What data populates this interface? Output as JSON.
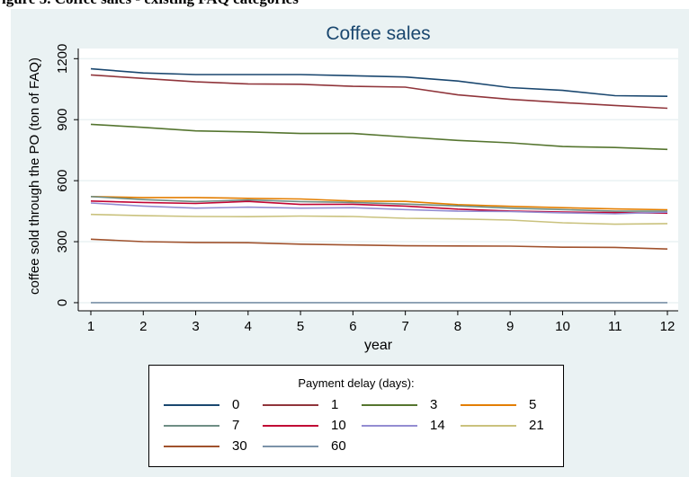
{
  "figure_caption": "igure 5. Coffee sales - existing FAQ categories",
  "chart_data": {
    "type": "line",
    "title": "Coffee sales",
    "xlabel": "year",
    "ylabel": "coffee sold through the PO (ton of FAQ)",
    "x": [
      1,
      2,
      3,
      4,
      5,
      6,
      7,
      8,
      9,
      10,
      11,
      12
    ],
    "xlim": [
      1,
      12
    ],
    "ylim": [
      -40,
      1250
    ],
    "yticks": [
      0,
      300,
      600,
      900,
      1200
    ],
    "grid": "horizontal",
    "legend": {
      "title": "Payment delay (days):",
      "placement": "bottom"
    },
    "series": [
      {
        "name": "0",
        "color": "#1a476f",
        "values": [
          1150,
          1130,
          1122,
          1122,
          1122,
          1116,
          1110,
          1090,
          1058,
          1044,
          1018,
          1015
        ]
      },
      {
        "name": "1",
        "color": "#90353b",
        "values": [
          1120,
          1103,
          1086,
          1076,
          1074,
          1064,
          1060,
          1022,
          1000,
          984,
          970,
          956
        ]
      },
      {
        "name": "3",
        "color": "#55752f",
        "values": [
          877,
          862,
          845,
          840,
          832,
          832,
          815,
          798,
          786,
          768,
          763,
          754
        ]
      },
      {
        "name": "5",
        "color": "#e37e00",
        "values": [
          522,
          517,
          517,
          513,
          510,
          500,
          498,
          482,
          474,
          467,
          461,
          457
        ]
      },
      {
        "name": "7",
        "color": "#6e8e84",
        "values": [
          522,
          507,
          497,
          505,
          497,
          493,
          485,
          476,
          465,
          458,
          450,
          450
        ]
      },
      {
        "name": "10",
        "color": "#c10534",
        "values": [
          500,
          493,
          488,
          498,
          483,
          484,
          475,
          460,
          451,
          446,
          443,
          440
        ]
      },
      {
        "name": "14",
        "color": "#938dd2",
        "values": [
          490,
          475,
          465,
          470,
          465,
          467,
          458,
          450,
          448,
          442,
          437,
          445
        ]
      },
      {
        "name": "21",
        "color": "#cac27e",
        "values": [
          434,
          428,
          424,
          423,
          426,
          424,
          415,
          412,
          406,
          393,
          386,
          389
        ]
      },
      {
        "name": "30",
        "color": "#a0522d",
        "values": [
          312,
          300,
          296,
          295,
          288,
          284,
          280,
          279,
          278,
          273,
          272,
          264
        ]
      },
      {
        "name": "60",
        "color": "#7b92a8",
        "values": [
          0,
          0,
          0,
          0,
          0,
          0,
          0,
          0,
          0,
          0,
          0,
          0
        ]
      }
    ]
  }
}
